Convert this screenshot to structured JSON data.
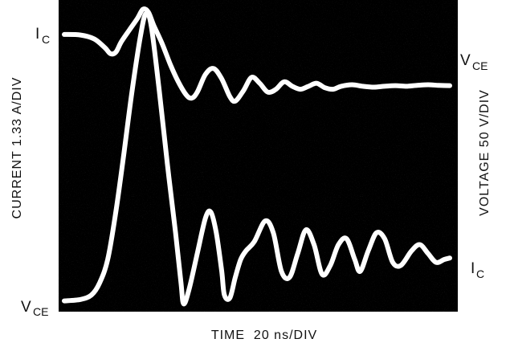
{
  "chart_data": {
    "type": "line",
    "left_axis_label": "CURRENT 1.33 A/DIV",
    "right_axis_label": "VOLTAGE 50 V/DIV",
    "x_axis_label": "TIME  20 ns/DIV",
    "trace_labels": {
      "ic_top": "C",
      "vce_top": "CE",
      "ic_bottom": "C",
      "vce_bottom": "CE"
    },
    "series": [
      {
        "name": "IC",
        "points": [
          [
            0,
            9.2
          ],
          [
            0.3,
            9.18
          ],
          [
            0.55,
            9.05
          ],
          [
            0.75,
            8.75
          ],
          [
            0.85,
            8.55
          ],
          [
            0.95,
            8.6
          ],
          [
            1.05,
            8.95
          ],
          [
            1.2,
            9.35
          ],
          [
            1.35,
            9.75
          ],
          [
            1.45,
            10.05
          ],
          [
            1.55,
            9.95
          ],
          [
            1.65,
            9.5
          ],
          [
            1.8,
            8.9
          ],
          [
            1.95,
            8.2
          ],
          [
            2.1,
            7.6
          ],
          [
            2.25,
            7.15
          ],
          [
            2.35,
            7.05
          ],
          [
            2.45,
            7.25
          ],
          [
            2.6,
            7.85
          ],
          [
            2.75,
            8.05
          ],
          [
            2.9,
            7.7
          ],
          [
            3.05,
            7.1
          ],
          [
            3.15,
            6.95
          ],
          [
            3.3,
            7.3
          ],
          [
            3.45,
            7.75
          ],
          [
            3.6,
            7.55
          ],
          [
            3.75,
            7.25
          ],
          [
            3.9,
            7.35
          ],
          [
            4.05,
            7.6
          ],
          [
            4.2,
            7.45
          ],
          [
            4.35,
            7.35
          ],
          [
            4.5,
            7.45
          ],
          [
            4.65,
            7.55
          ],
          [
            4.8,
            7.4
          ],
          [
            4.95,
            7.35
          ],
          [
            5.1,
            7.45
          ],
          [
            5.3,
            7.5
          ],
          [
            5.5,
            7.45
          ],
          [
            5.7,
            7.42
          ],
          [
            5.9,
            7.45
          ],
          [
            6.1,
            7.47
          ],
          [
            6.3,
            7.45
          ],
          [
            6.5,
            7.48
          ],
          [
            6.7,
            7.5
          ],
          [
            6.9,
            7.48
          ],
          [
            7.1,
            7.47
          ]
        ]
      },
      {
        "name": "VCE",
        "points": [
          [
            0,
            0.2
          ],
          [
            0.3,
            0.25
          ],
          [
            0.5,
            0.4
          ],
          [
            0.65,
            0.8
          ],
          [
            0.8,
            1.6
          ],
          [
            0.95,
            3.2
          ],
          [
            1.1,
            5.2
          ],
          [
            1.25,
            7.3
          ],
          [
            1.4,
            9.1
          ],
          [
            1.5,
            9.9
          ],
          [
            1.6,
            9.5
          ],
          [
            1.75,
            7.3
          ],
          [
            1.9,
            4.8
          ],
          [
            2.05,
            2.5
          ],
          [
            2.15,
            0.8
          ],
          [
            2.2,
            0.1
          ],
          [
            2.3,
            0.6
          ],
          [
            2.45,
            1.8
          ],
          [
            2.6,
            3.0
          ],
          [
            2.7,
            3.2
          ],
          [
            2.8,
            2.5
          ],
          [
            2.9,
            1.2
          ],
          [
            2.95,
            0.4
          ],
          [
            3.05,
            0.3
          ],
          [
            3.15,
            1.0
          ],
          [
            3.25,
            1.6
          ],
          [
            3.35,
            1.9
          ],
          [
            3.5,
            2.2
          ],
          [
            3.7,
            2.9
          ],
          [
            3.85,
            2.5
          ],
          [
            4.0,
            1.2
          ],
          [
            4.15,
            1.0
          ],
          [
            4.3,
            1.8
          ],
          [
            4.45,
            2.6
          ],
          [
            4.6,
            2.1
          ],
          [
            4.75,
            1.1
          ],
          [
            4.9,
            1.4
          ],
          [
            5.05,
            2.1
          ],
          [
            5.2,
            2.3
          ],
          [
            5.35,
            1.6
          ],
          [
            5.45,
            1.2
          ],
          [
            5.6,
            1.9
          ],
          [
            5.75,
            2.5
          ],
          [
            5.9,
            2.3
          ],
          [
            6.05,
            1.5
          ],
          [
            6.2,
            1.4
          ],
          [
            6.4,
            1.9
          ],
          [
            6.55,
            2.1
          ],
          [
            6.7,
            1.8
          ],
          [
            6.85,
            1.5
          ],
          [
            7.0,
            1.6
          ],
          [
            7.1,
            1.65
          ]
        ]
      }
    ],
    "xlim": [
      0,
      7.1
    ],
    "ylim": [
      0,
      10.2
    ],
    "grid": false,
    "legend": "none",
    "colors": {
      "background": "#000000",
      "trace": "#ffffff",
      "text": "#111111"
    }
  }
}
